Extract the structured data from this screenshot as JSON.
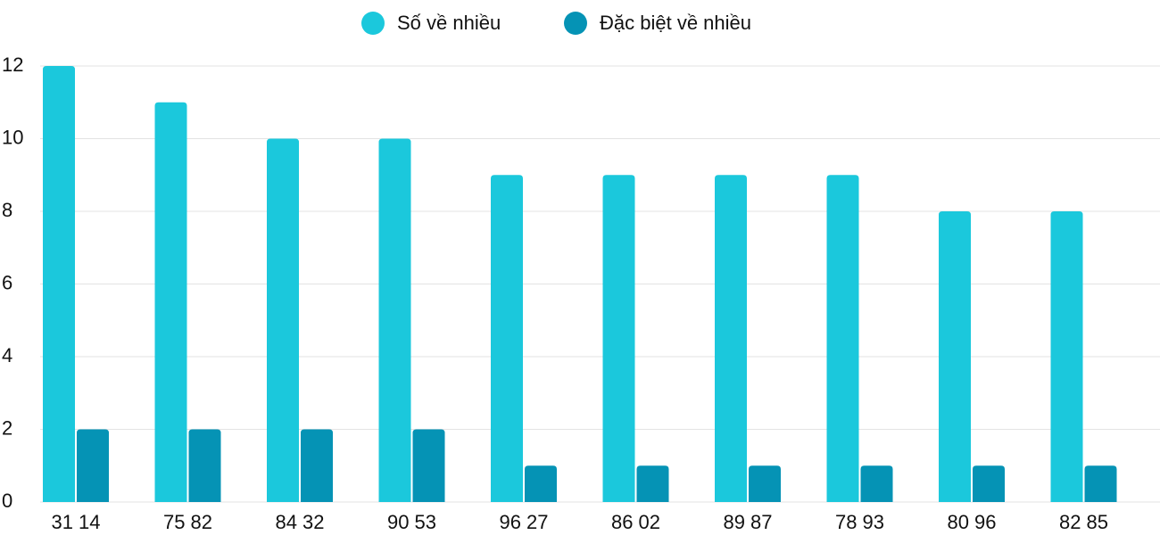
{
  "chart_data": {
    "type": "bar",
    "categories": [
      "31 14",
      "75 82",
      "84 32",
      "90 53",
      "96 27",
      "86 02",
      "89 87",
      "78 93",
      "80 96",
      "82 85"
    ],
    "series": [
      {
        "name": "Số về nhiều",
        "color": "#1bc8dc",
        "values": [
          12,
          11,
          10,
          10,
          9,
          9,
          9,
          9,
          8,
          8
        ]
      },
      {
        "name": "Đặc biệt về nhiều",
        "color": "#0593b5",
        "values": [
          2,
          2,
          2,
          2,
          1,
          1,
          1,
          1,
          1,
          1
        ]
      }
    ],
    "ylim": [
      0,
      12
    ],
    "yticks": [
      0,
      2,
      4,
      6,
      8,
      10,
      12
    ],
    "grid": true,
    "legend": "top"
  }
}
